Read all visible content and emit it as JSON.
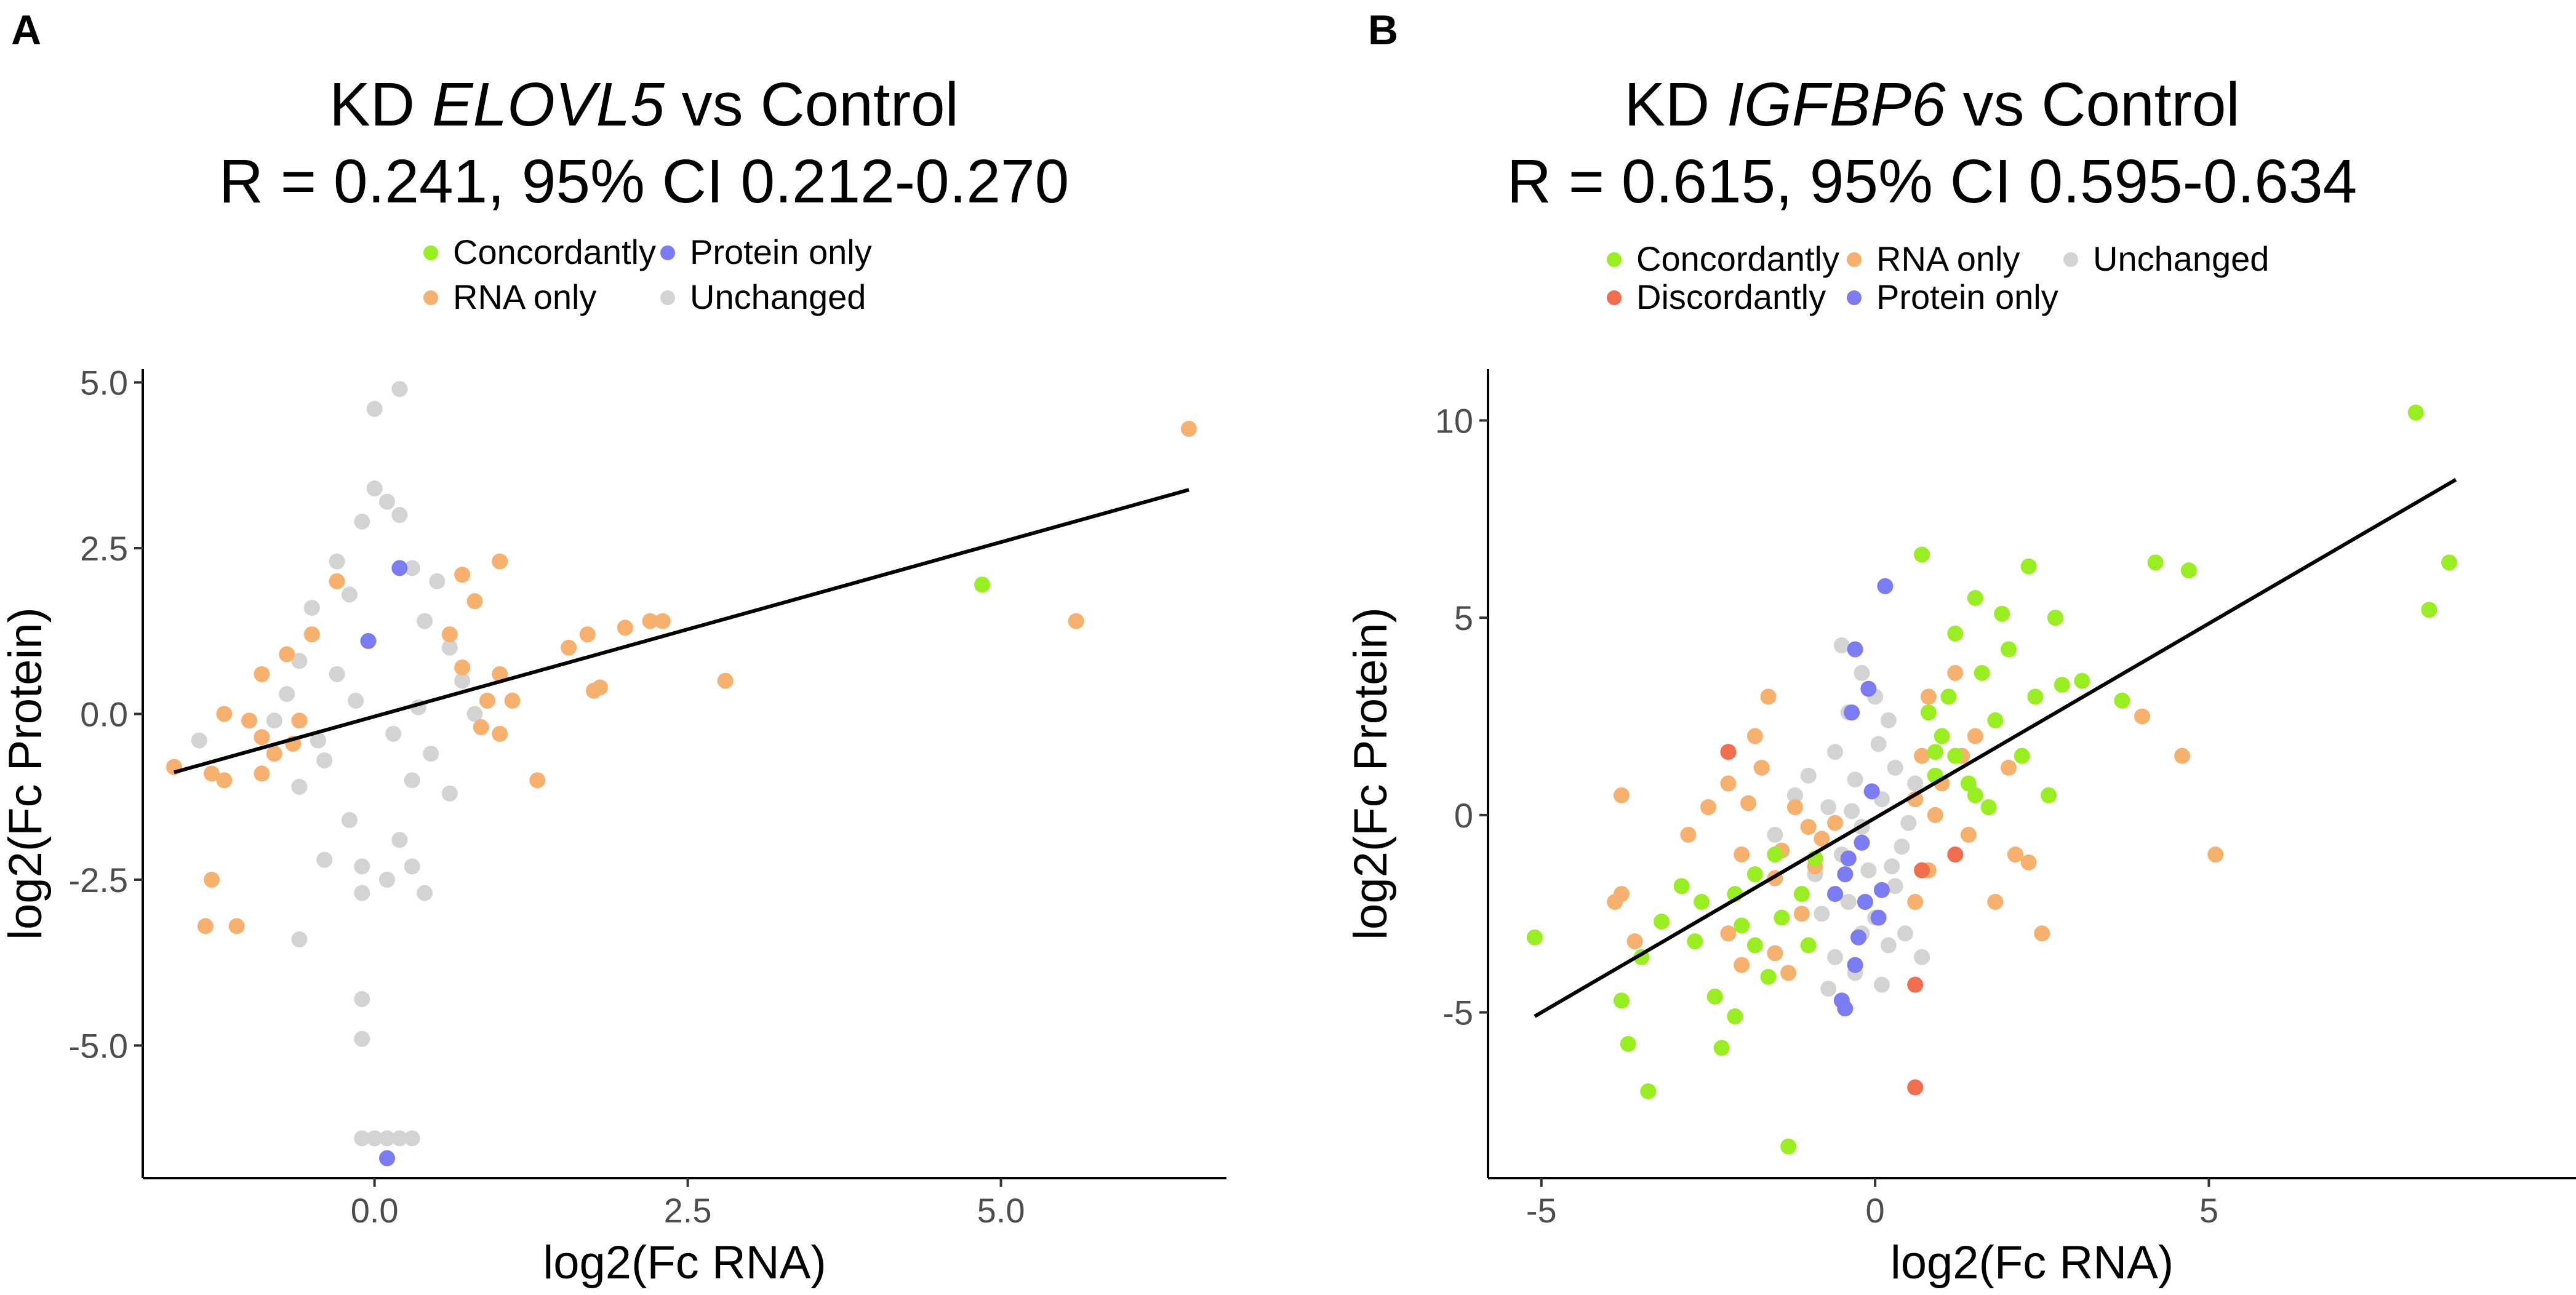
{
  "chart_data": [
    {
      "panel_label": "A",
      "type": "scatter",
      "title_prefix": "KD ",
      "title_gene": "ELOVL5",
      "title_suffix": " vs Control",
      "subtitle": "R = 0.241, 95% CI 0.212-0.270",
      "xlabel": "log2(Fc RNA)",
      "ylabel": "log2(Fc Protein)",
      "xlim": [
        -1.85,
        6.8
      ],
      "ylim": [
        -7.0,
        5.2
      ],
      "xticks": [
        0.0,
        2.5,
        5.0
      ],
      "xtick_labels": [
        "0.0",
        "2.5",
        "5.0"
      ],
      "yticks": [
        -5.0,
        -2.5,
        0.0,
        2.5,
        5.0
      ],
      "ytick_labels": [
        "-5.0",
        "-2.5",
        "0.0",
        "2.5",
        "5.0"
      ],
      "legend_position": "top",
      "legend": [
        {
          "name": "Concordantly",
          "color": "#99ee22"
        },
        {
          "name": "Protein only",
          "color": "#7b7bf2"
        },
        {
          "name": "RNA only",
          "color": "#f7b16e"
        },
        {
          "name": "Unchanged",
          "color": "#d3d3d3"
        }
      ],
      "fit_line": {
        "x": [
          -1.6,
          6.5
        ],
        "y": [
          -0.88,
          3.38
        ]
      },
      "series": [
        {
          "name": "Unchanged",
          "color": "#d3d3d3",
          "points": [
            [
              0.0,
              4.6
            ],
            [
              0.2,
              4.9
            ],
            [
              0.0,
              3.4
            ],
            [
              0.1,
              3.2
            ],
            [
              0.2,
              3.0
            ],
            [
              -0.1,
              2.9
            ],
            [
              -0.3,
              2.3
            ],
            [
              0.3,
              2.2
            ],
            [
              0.5,
              2.0
            ],
            [
              -0.5,
              1.6
            ],
            [
              -0.2,
              1.8
            ],
            [
              0.4,
              1.4
            ],
            [
              0.6,
              1.0
            ],
            [
              -0.6,
              0.8
            ],
            [
              0.7,
              0.5
            ],
            [
              -0.7,
              0.3
            ],
            [
              0.8,
              0.0
            ],
            [
              -0.8,
              -0.1
            ],
            [
              -0.4,
              -0.7
            ],
            [
              0.3,
              -1.0
            ],
            [
              -0.6,
              -1.1
            ],
            [
              0.6,
              -1.2
            ],
            [
              -1.4,
              -0.4
            ],
            [
              -1.6,
              -0.8
            ],
            [
              -0.2,
              -1.6
            ],
            [
              0.2,
              -1.9
            ],
            [
              -0.1,
              -2.3
            ],
            [
              0.1,
              -2.5
            ],
            [
              0.3,
              -2.3
            ],
            [
              -0.4,
              -2.2
            ],
            [
              -0.1,
              -2.7
            ],
            [
              0.4,
              -2.7
            ],
            [
              -0.6,
              -3.4
            ],
            [
              -0.1,
              -4.3
            ],
            [
              -0.1,
              -4.9
            ],
            [
              -0.1,
              -6.4
            ],
            [
              0.1,
              -6.4
            ],
            [
              0.2,
              -6.4
            ],
            [
              0.0,
              -6.4
            ],
            [
              0.3,
              -6.4
            ],
            [
              -0.15,
              0.2
            ],
            [
              0.15,
              -0.3
            ],
            [
              -0.3,
              0.6
            ],
            [
              0.35,
              0.1
            ],
            [
              -0.45,
              -0.4
            ],
            [
              0.45,
              -0.6
            ]
          ]
        },
        {
          "name": "RNA only",
          "color": "#f7b16e",
          "points": [
            [
              6.5,
              4.3
            ],
            [
              5.6,
              1.4
            ],
            [
              2.8,
              0.5
            ],
            [
              2.2,
              1.4
            ],
            [
              2.3,
              1.4
            ],
            [
              2.0,
              1.3
            ],
            [
              1.7,
              1.2
            ],
            [
              1.55,
              1.0
            ],
            [
              1.8,
              0.4
            ],
            [
              1.75,
              0.35
            ],
            [
              1.0,
              2.3
            ],
            [
              0.7,
              2.1
            ],
            [
              1.0,
              0.6
            ],
            [
              0.9,
              0.2
            ],
            [
              1.1,
              0.2
            ],
            [
              1.3,
              -1.0
            ],
            [
              1.0,
              -0.3
            ],
            [
              0.8,
              1.7
            ],
            [
              0.6,
              1.2
            ],
            [
              0.7,
              0.7
            ],
            [
              0.85,
              -0.2
            ],
            [
              -0.3,
              2.0
            ],
            [
              -0.5,
              1.2
            ],
            [
              -0.7,
              0.9
            ],
            [
              -0.9,
              0.6
            ],
            [
              -1.2,
              0.0
            ],
            [
              -1.3,
              -0.9
            ],
            [
              -1.6,
              -0.8
            ],
            [
              -1.2,
              -1.0
            ],
            [
              -0.6,
              -0.1
            ],
            [
              -0.8,
              -0.6
            ],
            [
              -0.9,
              -0.35
            ],
            [
              -0.65,
              -0.45
            ],
            [
              -1.0,
              -0.1
            ],
            [
              -1.3,
              -2.5
            ],
            [
              -1.1,
              -3.2
            ],
            [
              -1.35,
              -3.2
            ],
            [
              -0.9,
              -0.9
            ]
          ]
        },
        {
          "name": "Protein only",
          "color": "#7b7bf2",
          "points": [
            [
              0.2,
              2.2
            ],
            [
              -0.05,
              1.1
            ],
            [
              0.1,
              -6.7
            ]
          ]
        },
        {
          "name": "Concordantly",
          "color": "#99ee22",
          "points": [
            [
              4.85,
              1.95
            ]
          ]
        }
      ]
    },
    {
      "panel_label": "B",
      "type": "scatter",
      "title_prefix": "KD ",
      "title_gene": "IGFBP6",
      "title_suffix": " vs Control",
      "subtitle": "R = 0.615, 95% CI 0.595-0.634",
      "xlabel": "log2(Fc RNA)",
      "ylabel": "log2(Fc Protein)",
      "xlim": [
        -5.8,
        10.5
      ],
      "ylim": [
        -9.2,
        11.3
      ],
      "xticks": [
        -5,
        0,
        5
      ],
      "xtick_labels": [
        "-5",
        "0",
        "5"
      ],
      "yticks": [
        -5,
        0,
        5,
        10
      ],
      "ytick_labels": [
        "-5",
        "0",
        "5",
        "10"
      ],
      "legend_position": "top",
      "legend": [
        {
          "name": "Concordantly",
          "color": "#99ee22"
        },
        {
          "name": "Discordantly",
          "color": "#f26d4e"
        },
        {
          "name": "RNA only",
          "color": "#f7b16e"
        },
        {
          "name": "Protein only",
          "color": "#7b7bf2"
        },
        {
          "name": "Unchanged",
          "color": "#d3d3d3"
        }
      ],
      "fit_line": {
        "x": [
          -5.1,
          8.7
        ],
        "y": [
          -5.1,
          8.5
        ]
      },
      "series": [
        {
          "name": "Unchanged",
          "color": "#d3d3d3",
          "points": [
            [
              -0.5,
              4.3
            ],
            [
              -0.2,
              3.6
            ],
            [
              0.0,
              3.0
            ],
            [
              -0.4,
              2.6
            ],
            [
              0.2,
              2.4
            ],
            [
              -0.6,
              1.6
            ],
            [
              0.3,
              1.2
            ],
            [
              -0.3,
              0.9
            ],
            [
              -0.7,
              0.2
            ],
            [
              0.1,
              0.4
            ],
            [
              -0.2,
              -0.3
            ],
            [
              0.4,
              -0.8
            ],
            [
              -0.5,
              -1.0
            ],
            [
              -0.1,
              -1.4
            ],
            [
              0.3,
              -1.8
            ],
            [
              -0.4,
              -2.2
            ],
            [
              0.0,
              -2.6
            ],
            [
              -0.2,
              -3.0
            ],
            [
              0.2,
              -3.3
            ],
            [
              -0.6,
              -3.6
            ],
            [
              -0.3,
              -4.0
            ],
            [
              0.1,
              -4.3
            ],
            [
              -0.8,
              -2.5
            ],
            [
              -0.9,
              -1.5
            ],
            [
              0.5,
              -0.2
            ],
            [
              0.6,
              0.8
            ],
            [
              -1.0,
              1.0
            ],
            [
              -1.2,
              0.5
            ],
            [
              -1.5,
              -0.5
            ],
            [
              0.45,
              -3.0
            ],
            [
              0.7,
              -3.6
            ],
            [
              -0.7,
              -4.4
            ],
            [
              0.05,
              1.8
            ],
            [
              -0.35,
              0.1
            ],
            [
              0.25,
              -1.3
            ]
          ]
        },
        {
          "name": "RNA only",
          "color": "#f7b16e",
          "points": [
            [
              -1.6,
              3.0
            ],
            [
              -1.8,
              2.0
            ],
            [
              -1.7,
              1.2
            ],
            [
              -2.2,
              0.8
            ],
            [
              -2.5,
              0.2
            ],
            [
              -3.8,
              0.5
            ],
            [
              -2.8,
              -0.5
            ],
            [
              -1.2,
              0.2
            ],
            [
              -1.0,
              -0.3
            ],
            [
              -0.8,
              -0.6
            ],
            [
              -1.4,
              -0.9
            ],
            [
              -2.0,
              -1.0
            ],
            [
              -0.6,
              -0.2
            ],
            [
              -1.1,
              -2.5
            ],
            [
              -1.5,
              -3.5
            ],
            [
              -2.2,
              -3.0
            ],
            [
              -2.0,
              -3.8
            ],
            [
              -1.3,
              -4.0
            ],
            [
              -3.8,
              -2.0
            ],
            [
              -3.9,
              -2.2
            ],
            [
              -3.6,
              -3.2
            ],
            [
              0.8,
              3.0
            ],
            [
              1.2,
              3.6
            ],
            [
              1.5,
              2.0
            ],
            [
              0.7,
              1.5
            ],
            [
              2.0,
              1.2
            ],
            [
              1.0,
              0.8
            ],
            [
              0.9,
              0.0
            ],
            [
              1.4,
              -0.5
            ],
            [
              2.1,
              -1.0
            ],
            [
              2.5,
              -3.0
            ],
            [
              0.8,
              -1.4
            ],
            [
              0.6,
              -2.2
            ],
            [
              1.8,
              -2.2
            ],
            [
              2.3,
              -1.2
            ],
            [
              4.0,
              2.5
            ],
            [
              4.6,
              1.5
            ],
            [
              5.1,
              -1.0
            ],
            [
              -1.5,
              -1.6
            ],
            [
              -0.9,
              -1.3
            ],
            [
              -1.9,
              0.3
            ],
            [
              1.3,
              1.5
            ],
            [
              0.6,
              0.4
            ]
          ]
        },
        {
          "name": "Concordantly",
          "color": "#99ee22",
          "points": [
            [
              8.1,
              10.2
            ],
            [
              8.6,
              6.4
            ],
            [
              8.3,
              5.2
            ],
            [
              4.2,
              6.4
            ],
            [
              4.7,
              6.2
            ],
            [
              3.7,
              2.9
            ],
            [
              3.1,
              3.4
            ],
            [
              2.7,
              5.0
            ],
            [
              2.3,
              6.3
            ],
            [
              1.9,
              5.1
            ],
            [
              1.5,
              5.5
            ],
            [
              1.2,
              4.6
            ],
            [
              0.7,
              6.6
            ],
            [
              2.0,
              4.2
            ],
            [
              1.6,
              3.6
            ],
            [
              2.4,
              3.0
            ],
            [
              1.1,
              3.0
            ],
            [
              2.8,
              3.3
            ],
            [
              1.8,
              2.4
            ],
            [
              1.0,
              2.0
            ],
            [
              2.2,
              1.5
            ],
            [
              0.9,
              1.0
            ],
            [
              1.4,
              0.8
            ],
            [
              2.6,
              0.5
            ],
            [
              1.7,
              0.2
            ],
            [
              1.2,
              1.5
            ],
            [
              0.8,
              2.6
            ],
            [
              -1.5,
              -1.0
            ],
            [
              -1.8,
              -1.5
            ],
            [
              -2.1,
              -2.0
            ],
            [
              -2.6,
              -2.2
            ],
            [
              -2.9,
              -1.8
            ],
            [
              -3.2,
              -2.7
            ],
            [
              -3.5,
              -3.6
            ],
            [
              -3.8,
              -4.7
            ],
            [
              -3.7,
              -5.8
            ],
            [
              -3.4,
              -7.0
            ],
            [
              -5.1,
              -3.1
            ],
            [
              -2.4,
              -4.6
            ],
            [
              -2.1,
              -5.1
            ],
            [
              -2.3,
              -5.9
            ],
            [
              -1.6,
              -4.1
            ],
            [
              -1.0,
              -3.3
            ],
            [
              -1.3,
              -8.4
            ],
            [
              -1.8,
              -3.3
            ],
            [
              -1.1,
              -2.0
            ],
            [
              -0.9,
              -1.1
            ],
            [
              -1.4,
              -2.6
            ],
            [
              -2.7,
              -3.2
            ],
            [
              -2.0,
              -2.8
            ],
            [
              1.5,
              0.5
            ],
            [
              0.9,
              1.6
            ]
          ]
        },
        {
          "name": "Protein only",
          "color": "#7b7bf2",
          "points": [
            [
              0.15,
              5.8
            ],
            [
              -0.3,
              4.2
            ],
            [
              -0.1,
              3.2
            ],
            [
              -0.35,
              2.6
            ],
            [
              -0.05,
              0.6
            ],
            [
              -0.2,
              -0.7
            ],
            [
              -0.45,
              -1.5
            ],
            [
              -0.15,
              -2.2
            ],
            [
              -0.3,
              -3.8
            ],
            [
              -0.5,
              -4.7
            ],
            [
              -0.45,
              -4.9
            ],
            [
              -0.25,
              -3.1
            ],
            [
              0.05,
              -2.6
            ],
            [
              -0.6,
              -2.0
            ],
            [
              -0.4,
              -1.1
            ],
            [
              0.1,
              -1.9
            ]
          ]
        },
        {
          "name": "Discordantly",
          "color": "#f26d4e",
          "points": [
            [
              -2.2,
              1.6
            ],
            [
              0.7,
              -1.4
            ],
            [
              1.2,
              -1.0
            ],
            [
              0.6,
              -4.3
            ],
            [
              0.6,
              -6.9
            ]
          ]
        }
      ]
    }
  ]
}
